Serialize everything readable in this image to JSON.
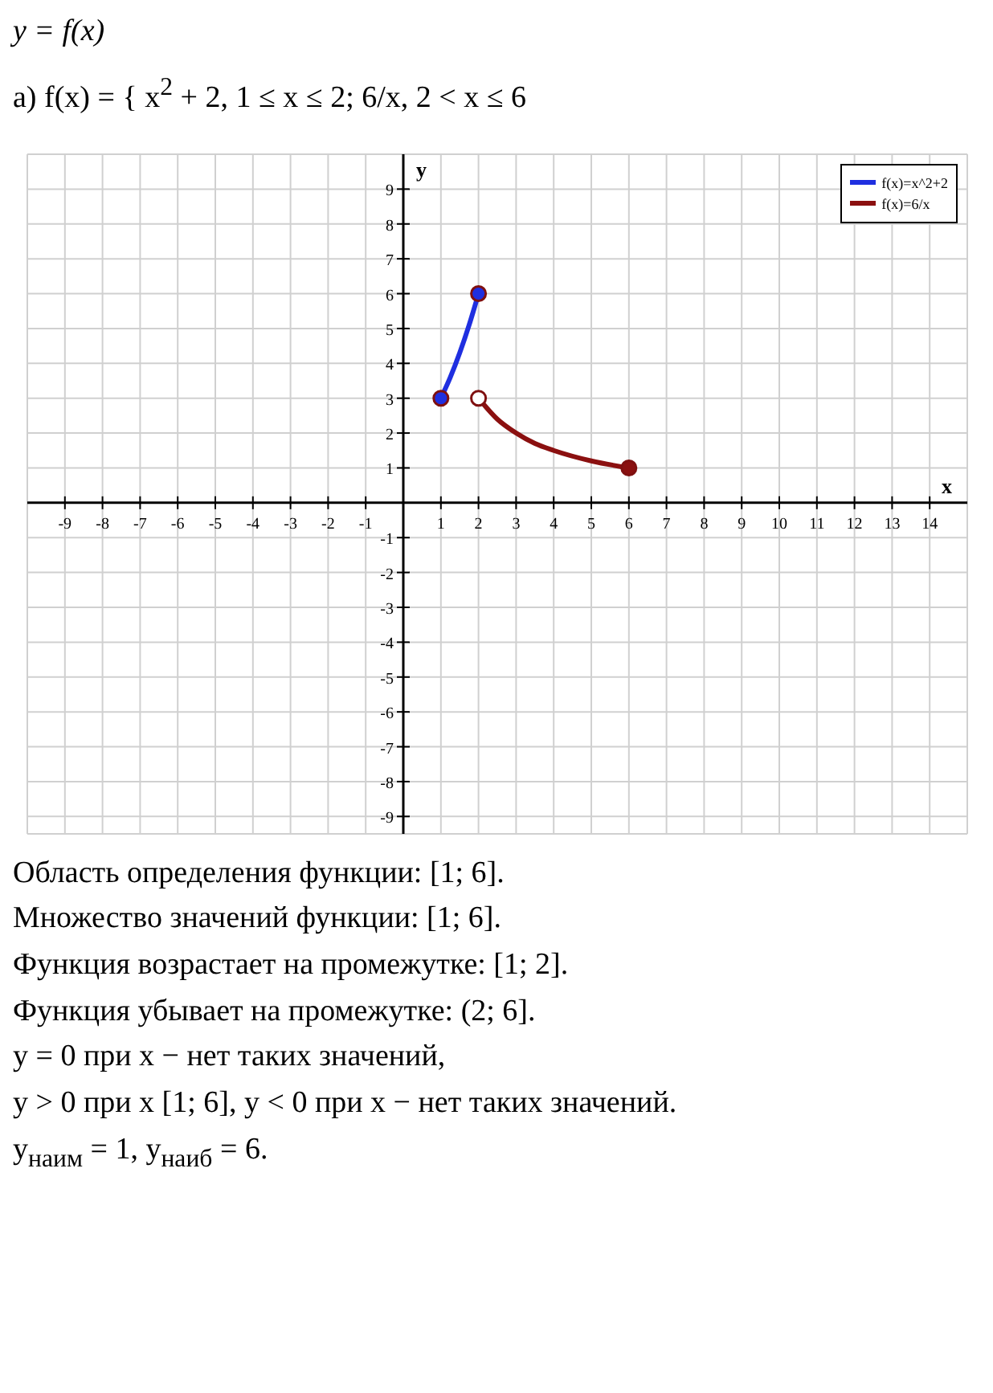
{
  "chart_data": {
    "type": "line",
    "title": "y = f(x)",
    "subtitle": "а) f(x) = { x$^{2}$ + 2,   1 ≤ x ≤ 2;   6/x,   2 < x ≤ 6",
    "xlabel": "x",
    "ylabel": "y",
    "xlim": [
      -10,
      15
    ],
    "xticks": [
      -9,
      -8,
      -7,
      -6,
      -5,
      -4,
      -3,
      -2,
      -1,
      1,
      2,
      3,
      4,
      5,
      6,
      7,
      8,
      9,
      10,
      11,
      12,
      13,
      14
    ],
    "ylim": [
      -9.5,
      10
    ],
    "yticks": [
      -9,
      -8,
      -7,
      -6,
      -5,
      -4,
      -3,
      -2,
      -1,
      1,
      2,
      3,
      4,
      5,
      6,
      7,
      8,
      9
    ],
    "grid": true,
    "legend": "top right",
    "series": [
      {
        "name": "f(x)=x^2+2",
        "color": "#1f2fe0",
        "marker": "none",
        "x": [
          1,
          1.25,
          1.5,
          1.75,
          2
        ],
        "values": [
          3,
          3.6,
          4.3,
          5.1,
          6
        ]
      },
      {
        "name": "f(x)=6/x",
        "color": "#8b1010",
        "marker": "none",
        "x": [
          2,
          2.5,
          3,
          3.5,
          4,
          5,
          6
        ],
        "values": [
          3,
          2.4,
          2,
          1.7,
          1.5,
          1.2,
          1
        ]
      },
      {
        "type": "scatter",
        "color": "#1f2fe0",
        "marker": "circle",
        "x": [
          1,
          2
        ],
        "values": [
          3,
          6
        ]
      },
      {
        "type": "scatter",
        "color": "#8b1010",
        "marker": "circle",
        "x": [
          6
        ],
        "values": [
          1
        ]
      },
      {
        "type": "scatter",
        "color": "#ffffff",
        "marker": "circle",
        "x": [
          2
        ],
        "values": [
          3
        ]
      }
    ],
    "annotations": [
      "Область определения функции: [1; 6].",
      "Множество значений функции: [1; 6].",
      "Функция возрастает на промежутке: [1; 2].",
      "Функция убывает на промежутке: (2; 6].",
      "y = 0 при x − нет таких значений,",
      "y > 0 при x [1; 6],       y < 0 при x − нет таких значений.",
      "y$_{наим}$ = 1,      y$_{наиб}$ = 6."
    ]
  }
}
